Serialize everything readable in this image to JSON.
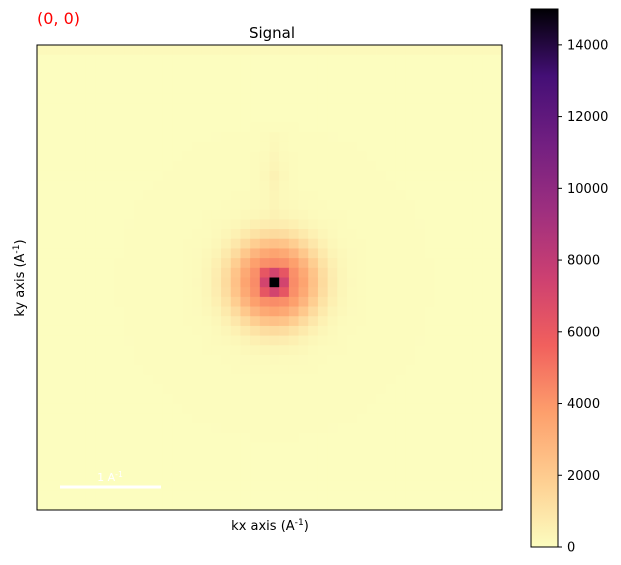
{
  "figure": {
    "position_label": "(0, 0)",
    "position_label_color": "#ff0000"
  },
  "chart_data": {
    "type": "heatmap",
    "title": "Signal",
    "xlabel": "kx axis (A^-1)",
    "ylabel": "ky axis (A^-1)",
    "grid": false,
    "colormap": "magma_r",
    "grid_size": 48,
    "center": {
      "col": 24,
      "row": 24
    },
    "peak_value": 15000,
    "features": {
      "center_core": "peak ~15000 at the image center, bright ring (~6000–8000) immediately around it",
      "halo": "orange/peach diffuse halo of radius ~6 pixels",
      "upper_tail": "faint streak above the center (values ~400–600)",
      "top_edge": "faint band along the top edge (values ~200)"
    },
    "scalebar": {
      "label": "1 A^-1",
      "color": "#ffffff"
    },
    "colorbar": {
      "range": [
        0,
        15000
      ],
      "ticks": [
        "0",
        "2000",
        "4000",
        "6000",
        "8000",
        "10000",
        "12000",
        "14000"
      ],
      "tick_values": [
        0,
        2000,
        4000,
        6000,
        8000,
        10000,
        12000,
        14000
      ]
    }
  }
}
